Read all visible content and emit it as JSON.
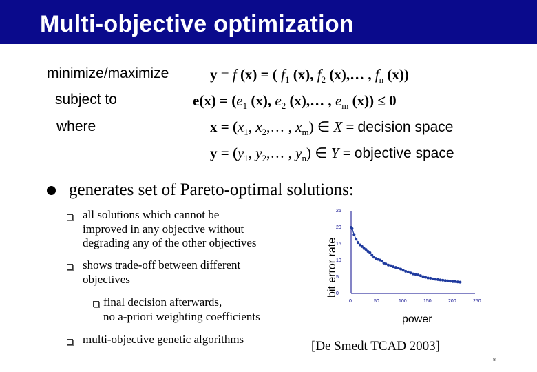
{
  "slide": {
    "title": "Multi-objective optimization",
    "labels": {
      "minimize": "minimize/maximize",
      "subject": "subject to",
      "where": "where"
    },
    "eq1": {
      "a": "y",
      "b": " = ",
      "c": "f",
      "d": " (x) = ( ",
      "e": "f",
      "e_sub": "1",
      "f": " (x), ",
      "g": "f",
      "g_sub": "2",
      "h": " (x),… , ",
      "i": "f",
      "i_sub": "n",
      "j": " (x))"
    },
    "eq2": {
      "a": "e(x) = (",
      "b": "e",
      "b_sub": "1",
      "c": " (x), ",
      "d": "e",
      "d_sub": "2",
      "e": " (x),… , ",
      "f": "e",
      "f_sub": "m",
      "g": " (x)) ≤ 0"
    },
    "eq3": {
      "a": "x = (",
      "b": "x",
      "b_sub": "1",
      "c": ", ",
      "d": "x",
      "d_sub": "2",
      "e": ",… , ",
      "f": "x",
      "f_sub": "m",
      "g": ") ∈ ",
      "h": "X",
      "i": " = ",
      "j": "decision space"
    },
    "eq4": {
      "a": "y = (",
      "b": "y",
      "b_sub": "1",
      "c": ", ",
      "d": "y",
      "d_sub": "2",
      "e": ",… , ",
      "f": "y",
      "f_sub": "n",
      "g": ") ∈ ",
      "h": "Y",
      "i": " = ",
      "j": "objective space"
    },
    "main_bullet": "generates set of Pareto-optimal solutions:",
    "sub_bullets": {
      "b1": [
        "all solutions which cannot be",
        "improved in any objective without",
        "degrading any of the other objectives"
      ],
      "b2": [
        "shows trade-off between different",
        "objectives"
      ],
      "b3": [
        "final decision afterwards,",
        "no a-priori weighting coefficients"
      ],
      "b4": "multi-objective genetic algorithms"
    },
    "citation": "[De Smedt TCAD 2003]",
    "page_number": "8"
  },
  "chart_data": {
    "type": "line",
    "xlabel": "power",
    "ylabel": "bit error rate",
    "xlim": [
      0,
      250
    ],
    "ylim": [
      0,
      25
    ],
    "x_ticks": [
      "0",
      "50",
      "100",
      "150",
      "200",
      "250"
    ],
    "y_ticks": [
      "0",
      "5",
      "10",
      "15",
      "20",
      "25"
    ],
    "grid": false,
    "color": "#1f3a9e",
    "x": [
      0,
      2,
      6,
      10,
      14,
      18,
      22,
      26,
      30,
      34,
      38,
      42,
      46,
      50,
      54,
      58,
      62,
      66,
      70,
      75,
      80,
      85,
      90,
      95,
      100,
      105,
      110,
      115,
      120,
      125,
      130,
      135,
      140,
      145,
      150,
      155,
      160,
      165,
      170,
      175,
      180,
      185,
      190,
      195,
      200,
      205,
      210,
      215,
      220
    ],
    "y": [
      20.0,
      19.6,
      17.8,
      16.4,
      15.4,
      14.7,
      14.2,
      13.6,
      13.3,
      12.7,
      12.3,
      11.6,
      11.0,
      10.6,
      10.3,
      10.1,
      9.8,
      9.2,
      8.9,
      8.6,
      8.4,
      8.1,
      7.9,
      7.7,
      7.4,
      7.0,
      6.7,
      6.5,
      6.2,
      5.9,
      5.8,
      5.6,
      5.4,
      5.1,
      4.9,
      4.7,
      4.6,
      4.4,
      4.3,
      4.2,
      4.1,
      4.0,
      3.9,
      3.8,
      3.7,
      3.6,
      3.6,
      3.5,
      3.4
    ]
  }
}
